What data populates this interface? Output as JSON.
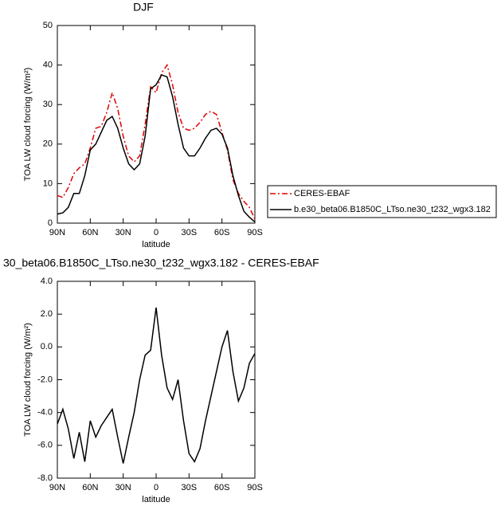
{
  "chart_data": [
    {
      "type": "line",
      "title": "DJF",
      "xlabel": "latitude",
      "ylabel": "TOA LW cloud forcing (W/m²)",
      "x": [
        90,
        85,
        80,
        75,
        70,
        65,
        60,
        55,
        50,
        45,
        40,
        35,
        30,
        25,
        20,
        15,
        10,
        5,
        0,
        -5,
        -10,
        -15,
        -20,
        -25,
        -30,
        -35,
        -40,
        -45,
        -50,
        -55,
        -60,
        -65,
        -70,
        -75,
        -80,
        -85,
        -90
      ],
      "xlim": [
        90,
        -90
      ],
      "xticks": [
        {
          "value": 90,
          "label": "90N"
        },
        {
          "value": 60,
          "label": "60N"
        },
        {
          "value": 30,
          "label": "30N"
        },
        0,
        {
          "value": -30,
          "label": "30S"
        },
        {
          "value": -60,
          "label": "60S"
        },
        {
          "value": -90,
          "label": "90S"
        }
      ],
      "ylim": [
        0,
        50
      ],
      "yticks": [
        0,
        10,
        20,
        30,
        40,
        50
      ],
      "series": [
        {
          "name": "CERES-EBAF",
          "color": "#e00000",
          "dash": true,
          "values": [
            7,
            6.5,
            9,
            12.5,
            14,
            15,
            19,
            24,
            24.5,
            28,
            33,
            29,
            22,
            17,
            15.5,
            17,
            25,
            34.5,
            33,
            38,
            40,
            35,
            28,
            24,
            23.5,
            24,
            25.5,
            27.5,
            28.3,
            27.5,
            23,
            18.5,
            11,
            7.5,
            5.5,
            4,
            1
          ]
        },
        {
          "name": "b.e30_beta06.B1850C_LTso.ne30_t232_wgx3.182",
          "color": "#000000",
          "dash": false,
          "values": [
            2.3,
            2.6,
            4,
            7.5,
            7.5,
            12,
            18.5,
            20,
            23,
            26,
            27,
            24,
            19,
            15,
            13.5,
            15,
            22,
            34,
            35,
            37.5,
            37,
            32,
            25,
            19,
            17,
            17,
            19,
            21.5,
            23.5,
            24,
            22.5,
            19,
            12,
            7,
            3,
            1.5,
            0.3
          ]
        }
      ]
    },
    {
      "type": "line",
      "title": "30_beta06.B1850C_LTso.ne30_t232_wgx3.182 - CERES-EBAF",
      "xlabel": "latitude",
      "ylabel": "TOA LW cloud forcing (W/m²)",
      "x": [
        90,
        85,
        80,
        75,
        70,
        65,
        60,
        55,
        50,
        45,
        40,
        35,
        30,
        25,
        20,
        15,
        10,
        5,
        0,
        -5,
        -10,
        -15,
        -20,
        -25,
        -30,
        -35,
        -40,
        -45,
        -50,
        -55,
        -60,
        -65,
        -70,
        -75,
        -80,
        -85,
        -90
      ],
      "xlim": [
        90,
        -90
      ],
      "xticks": [
        {
          "value": 90,
          "label": "90N"
        },
        {
          "value": 60,
          "label": "60N"
        },
        {
          "value": 30,
          "label": "30N"
        },
        0,
        {
          "value": -30,
          "label": "30S"
        },
        {
          "value": -60,
          "label": "60S"
        },
        {
          "value": -90,
          "label": "90S"
        }
      ],
      "ylim": [
        -8,
        4
      ],
      "yticks": [
        {
          "value": -8,
          "label": "-8.0"
        },
        {
          "value": -6,
          "label": "-6.0"
        },
        {
          "value": -4,
          "label": "-4.0"
        },
        {
          "value": -2,
          "label": "-2.0"
        },
        {
          "value": 0,
          "label": "0.0"
        },
        {
          "value": 2,
          "label": "2.0"
        },
        {
          "value": 4,
          "label": "4.0"
        }
      ],
      "series": [
        {
          "color": "#000000",
          "dash": false,
          "values": [
            -4.7,
            -3.8,
            -5,
            -6.8,
            -5.2,
            -7,
            -4.5,
            -5.5,
            -4.8,
            -4.3,
            -3.8,
            -5.5,
            -7.1,
            -5.5,
            -4,
            -2,
            -0.5,
            -0.2,
            2.4,
            -0.5,
            -2.5,
            -3.2,
            -2,
            -4.5,
            -6.5,
            -7,
            -6.2,
            -4.5,
            -3,
            -1.5,
            0,
            1,
            -1.5,
            -3.3,
            -2.5,
            -1,
            -0.4
          ]
        }
      ]
    }
  ]
}
